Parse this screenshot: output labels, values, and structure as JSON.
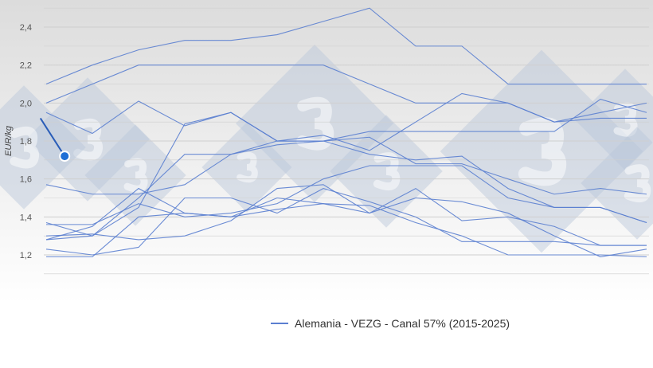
{
  "chart_data": {
    "type": "line",
    "ylabel": "EUR/kg",
    "ylim": [
      1.1,
      2.5
    ],
    "yticks": [
      "1,2",
      "1,4",
      "1,6",
      "1,8",
      "2,0",
      "2,2",
      "2,4"
    ],
    "ytick_values": [
      1.2,
      1.4,
      1.6,
      1.8,
      2.0,
      2.2,
      2.4
    ],
    "grid": true,
    "legend": {
      "label": "Alemania - VEZG - Canal 57% (2015-2025)",
      "placement": "bottom"
    },
    "series_color": "#5b7fd0",
    "highlight_color": "#1f6fd6",
    "x": [
      1,
      5,
      9,
      13,
      17,
      21,
      25,
      29,
      33,
      37,
      41,
      45,
      49,
      53
    ],
    "series": [
      {
        "values": [
          2.1,
          2.2,
          2.28,
          2.33,
          2.33,
          2.36,
          2.43,
          2.5,
          2.3,
          2.3,
          2.1,
          2.1,
          2.1,
          2.1
        ]
      },
      {
        "values": [
          2.0,
          2.1,
          2.2,
          2.2,
          2.2,
          2.2,
          2.2,
          2.1,
          2.0,
          2.0,
          2.0,
          1.9,
          1.92,
          1.92
        ]
      },
      {
        "values": [
          1.95,
          1.84,
          2.01,
          1.88,
          1.95,
          1.8,
          1.8,
          1.85,
          1.85,
          1.85,
          1.85,
          1.85,
          2.02,
          1.95
        ]
      },
      {
        "values": [
          1.57,
          1.52,
          1.52,
          1.57,
          1.73,
          1.8,
          1.83,
          1.75,
          1.9,
          2.05,
          2.0,
          1.9,
          1.95,
          2.0
        ]
      },
      {
        "values": [
          1.37,
          1.3,
          1.45,
          1.89,
          1.95,
          1.8,
          1.8,
          1.82,
          1.68,
          1.68,
          1.6,
          1.52,
          1.55,
          1.52
        ]
      },
      {
        "values": [
          1.28,
          1.3,
          1.5,
          1.73,
          1.73,
          1.78,
          1.8,
          1.73,
          1.7,
          1.72,
          1.55,
          1.45,
          1.45,
          1.37
        ]
      },
      {
        "values": [
          1.36,
          1.36,
          1.47,
          1.4,
          1.42,
          1.47,
          1.6,
          1.67,
          1.67,
          1.67,
          1.5,
          1.45,
          1.45,
          1.37
        ]
      },
      {
        "values": [
          1.23,
          1.2,
          1.24,
          1.5,
          1.5,
          1.42,
          1.55,
          1.48,
          1.4,
          1.27,
          1.27,
          1.27,
          1.25,
          1.25
        ]
      },
      {
        "values": [
          1.19,
          1.19,
          1.4,
          1.42,
          1.4,
          1.44,
          1.47,
          1.46,
          1.37,
          1.3,
          1.2,
          1.2,
          1.2,
          1.19
        ]
      },
      {
        "values": [
          1.28,
          1.35,
          1.55,
          1.42,
          1.4,
          1.5,
          1.47,
          1.42,
          1.55,
          1.38,
          1.4,
          1.35,
          1.25,
          1.25
        ]
      },
      {
        "values": [
          1.3,
          1.31,
          1.28,
          1.3,
          1.38,
          1.55,
          1.57,
          1.42,
          1.5,
          1.48,
          1.42,
          1.3,
          1.19,
          1.23
        ]
      }
    ],
    "highlight_series": {
      "x": [
        0.5,
        2.6
      ],
      "values": [
        1.92,
        1.72
      ]
    }
  }
}
